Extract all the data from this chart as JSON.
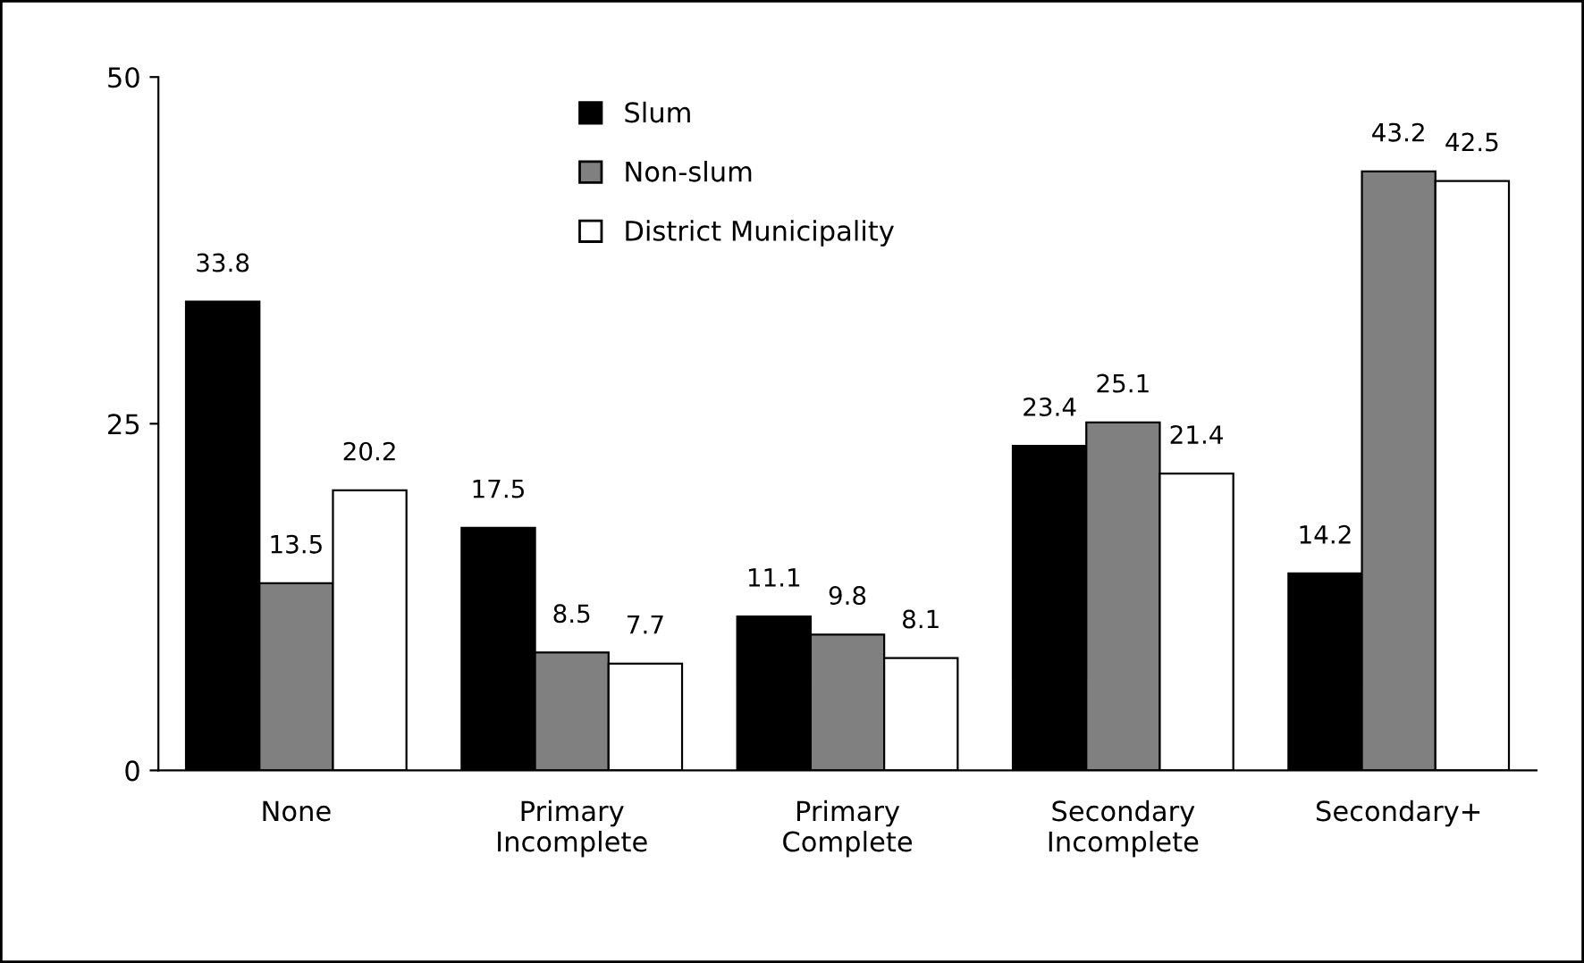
{
  "chart_data": {
    "type": "bar",
    "categories": [
      "None",
      "Primary\nIncomplete",
      "Primary\nComplete",
      "Secondary\nIncomplete",
      "Secondary+"
    ],
    "series": [
      {
        "name": "Slum",
        "color": "#000000",
        "values": [
          33.8,
          17.5,
          11.1,
          23.4,
          14.2
        ]
      },
      {
        "name": "Non-slum",
        "color": "#808080",
        "values": [
          13.5,
          8.5,
          9.8,
          25.1,
          43.2
        ]
      },
      {
        "name": "District Municipality",
        "color": "#ffffff",
        "values": [
          20.2,
          7.7,
          8.1,
          21.4,
          42.5
        ]
      }
    ],
    "ylim": [
      0,
      50
    ],
    "yticks": [
      0,
      25,
      50
    ],
    "grid": false,
    "legend": "top",
    "data_labels": true
  }
}
